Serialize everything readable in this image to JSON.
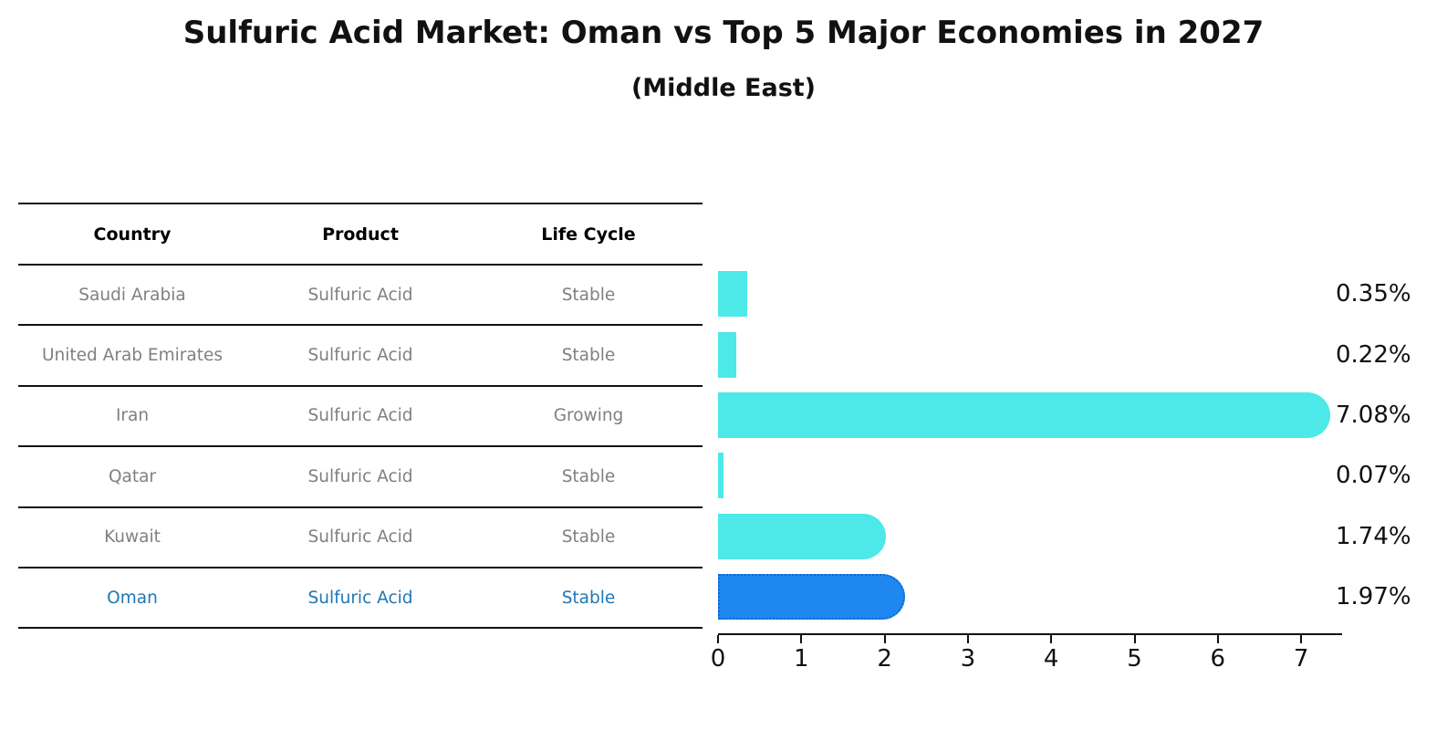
{
  "title": "Sulfuric Acid Market: Oman vs Top 5 Major Economies in 2027",
  "subtitle": "(Middle East)",
  "table": {
    "headers": [
      "Country",
      "Product",
      "Life Cycle"
    ],
    "rows": [
      {
        "country": "Saudi Arabia",
        "product": "Sulfuric Acid",
        "life_cycle": "Stable"
      },
      {
        "country": "United Arab Emirates",
        "product": "Sulfuric Acid",
        "life_cycle": "Stable"
      },
      {
        "country": "Iran",
        "product": "Sulfuric Acid",
        "life_cycle": "Growing"
      },
      {
        "country": "Qatar",
        "product": "Sulfuric Acid",
        "life_cycle": "Stable"
      },
      {
        "country": "Kuwait",
        "product": "Sulfuric Acid",
        "life_cycle": "Stable"
      },
      {
        "country": "Oman",
        "product": "Sulfuric Acid",
        "life_cycle": "Stable"
      }
    ],
    "highlight_row_index": 5
  },
  "chart_data": {
    "type": "bar",
    "orientation": "horizontal",
    "categories": [
      "Saudi Arabia",
      "United Arab Emirates",
      "Iran",
      "Qatar",
      "Kuwait",
      "Oman"
    ],
    "values": [
      0.35,
      0.22,
      7.08,
      0.07,
      1.74,
      1.97
    ],
    "value_labels": [
      "0.35%",
      "0.22%",
      "7.08%",
      "0.07%",
      "1.74%",
      "1.97%"
    ],
    "x_ticks": [
      "0",
      "1",
      "2",
      "3",
      "4",
      "5",
      "6",
      "7"
    ],
    "xlim": [
      0,
      7.5
    ],
    "grid": false,
    "legend": false,
    "bar_color": "#4DE8E8",
    "highlight_index": 5,
    "highlight_bar_color": "#1E87F0",
    "highlight_bar_border_color": "#1565D0"
  },
  "colors": {
    "title_text": "#111111",
    "table_header_text": "#000000",
    "table_body_text": "#808080",
    "highlight_row_text": "#1f77b4",
    "axis": "#111111"
  }
}
